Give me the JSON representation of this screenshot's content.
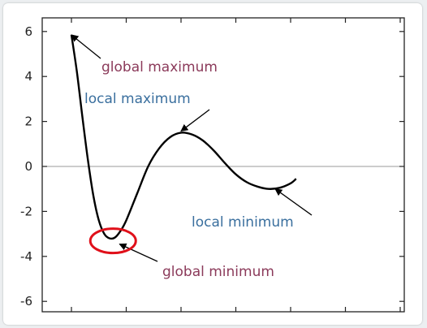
{
  "chart_data": {
    "type": "line",
    "title": "",
    "xlabel": "",
    "ylabel": "",
    "ylim": [
      -6.6,
      6.6
    ],
    "xlim": [
      -2.2,
      6.2
    ],
    "yticks": [
      "6",
      "4",
      "2",
      "0",
      "-2",
      "-4",
      "-6"
    ],
    "ytick_values": [
      6,
      4,
      2,
      0,
      -2,
      -4,
      -6
    ],
    "xtick_values": [
      -1,
      0,
      1,
      2,
      3,
      4,
      5
    ],
    "grid": false,
    "zero_line": true,
    "series": [
      {
        "values": [
          [
            -1.0,
            5.85
          ],
          [
            -0.9,
            4.2
          ],
          [
            -0.8,
            2.2
          ],
          [
            -0.7,
            0.3
          ],
          [
            -0.6,
            -1.3
          ],
          [
            -0.5,
            -2.4
          ],
          [
            -0.4,
            -3.0
          ],
          [
            -0.3,
            -3.2
          ],
          [
            -0.2,
            -3.15
          ],
          [
            -0.1,
            -2.85
          ],
          [
            0.0,
            -2.4
          ],
          [
            0.2,
            -1.2
          ],
          [
            0.4,
            0.0
          ],
          [
            0.6,
            0.8
          ],
          [
            0.8,
            1.3
          ],
          [
            1.0,
            1.5
          ],
          [
            1.2,
            1.42
          ],
          [
            1.4,
            1.15
          ],
          [
            1.6,
            0.7
          ],
          [
            1.8,
            0.15
          ],
          [
            2.0,
            -0.35
          ],
          [
            2.2,
            -0.7
          ],
          [
            2.4,
            -0.9
          ],
          [
            2.6,
            -1.0
          ],
          [
            2.8,
            -0.95
          ],
          [
            3.0,
            -0.75
          ],
          [
            3.1,
            -0.55
          ]
        ]
      }
    ],
    "annotations": [
      {
        "text": "global maximum",
        "point": [
          -1.0,
          5.85
        ],
        "color": "#8b3a5a"
      },
      {
        "text": "local maximum",
        "point": [
          1.0,
          1.5
        ],
        "color": "#3a6f9e"
      },
      {
        "text": "local minimum",
        "point": [
          2.6,
          -1.0
        ],
        "color": "#3a6f9e"
      },
      {
        "text": "global minimum",
        "point": [
          -0.3,
          -3.2
        ],
        "color": "#8b3a5a"
      }
    ],
    "highlight_circle": {
      "center": [
        -0.3,
        -3.2
      ],
      "color": "#e0101a"
    }
  }
}
